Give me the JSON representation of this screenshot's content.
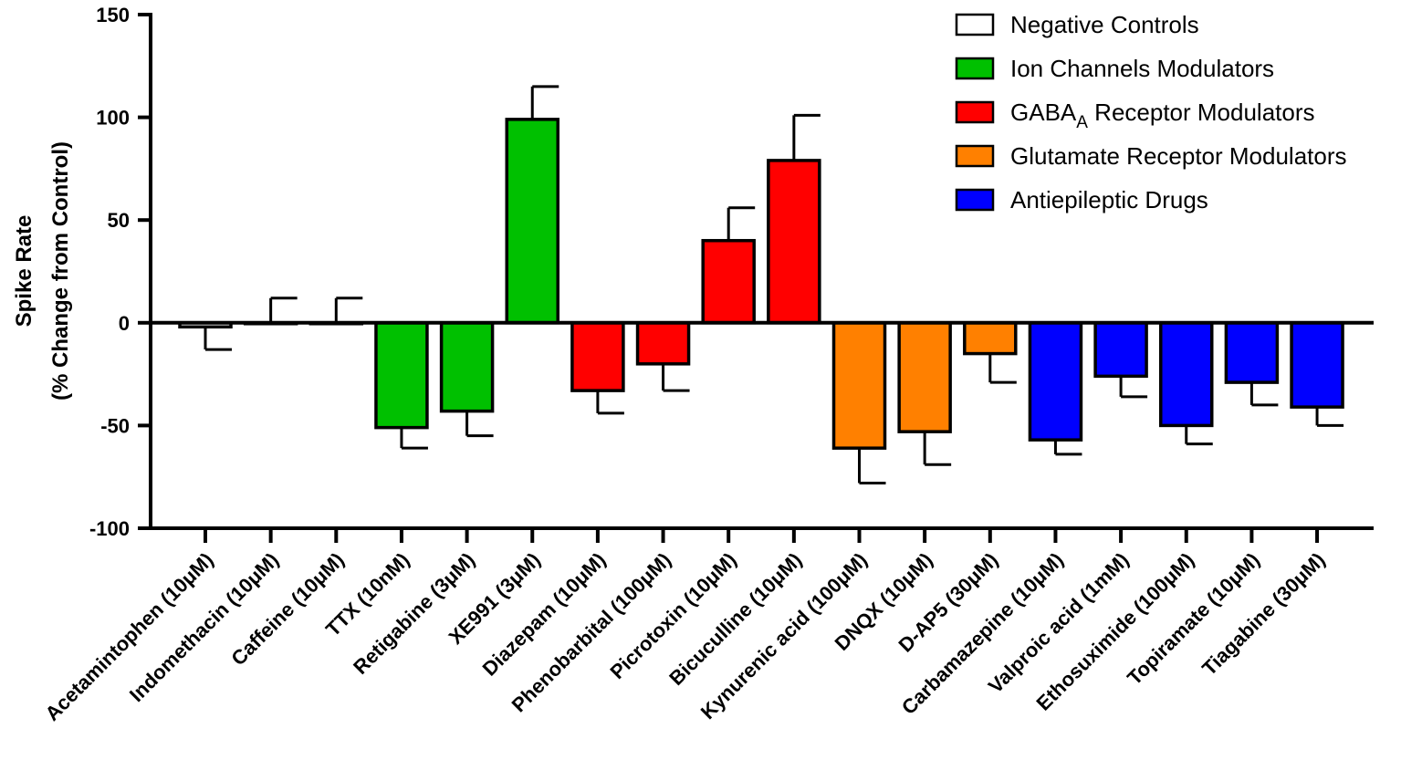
{
  "chart_data": {
    "type": "bar",
    "ylabel_line1": "Spike Rate",
    "ylabel_line2": "(% Change from Control)",
    "ylim": [
      -100,
      150
    ],
    "yticks": [
      -100,
      -50,
      0,
      50,
      100,
      150
    ],
    "ytick_labels": [
      "-100",
      "-50",
      "0",
      "50",
      "100",
      "150"
    ],
    "legend_position": "top-right",
    "groups": [
      {
        "name": "Negative Controls",
        "color": "#ffffff"
      },
      {
        "name": "Ion Channels Modulators",
        "color": "#00c000"
      },
      {
        "name_main": "GABA",
        "name_sub": "A",
        "name_rest": " Receptor Modulators",
        "color": "#ff0000"
      },
      {
        "name": "Glutamate Receptor Modulators",
        "color": "#ff8000"
      },
      {
        "name": "Antiepileptic Drugs",
        "color": "#0000ff"
      }
    ],
    "categories": [
      "Acetamintophen (10μM)",
      "Indomethacin (10μM)",
      "Caffeine (10μM)",
      "TTX (10nM)",
      "Retigabine (3μM)",
      "XE991 (3μM)",
      "Diazepam (10μM)",
      "Phenobarbital (100μM)",
      "Picrotoxin (10μM)",
      "Bicuculline (10μM)",
      "Kynurenic acid (100μM)",
      "DNQX (10μM)",
      "D-AP5 (30μM)",
      "Carbamazepine (10μM)",
      "Valproic acid (1mM)",
      "Ethosuximide (100μM)",
      "Topiramate (10μM)",
      "Tiagabine (30μM)"
    ],
    "values": [
      -2,
      0,
      0,
      -51,
      -43,
      99,
      -33,
      -20,
      40,
      79,
      -61,
      -53,
      -15,
      -57,
      -26,
      -50,
      -29,
      -41
    ],
    "errors": [
      11,
      12,
      12,
      10,
      12,
      16,
      11,
      13,
      16,
      22,
      17,
      16,
      14,
      7,
      10,
      9,
      11,
      9
    ],
    "group_index": [
      0,
      0,
      0,
      1,
      1,
      1,
      2,
      2,
      2,
      2,
      3,
      3,
      3,
      4,
      4,
      4,
      4,
      4
    ]
  }
}
